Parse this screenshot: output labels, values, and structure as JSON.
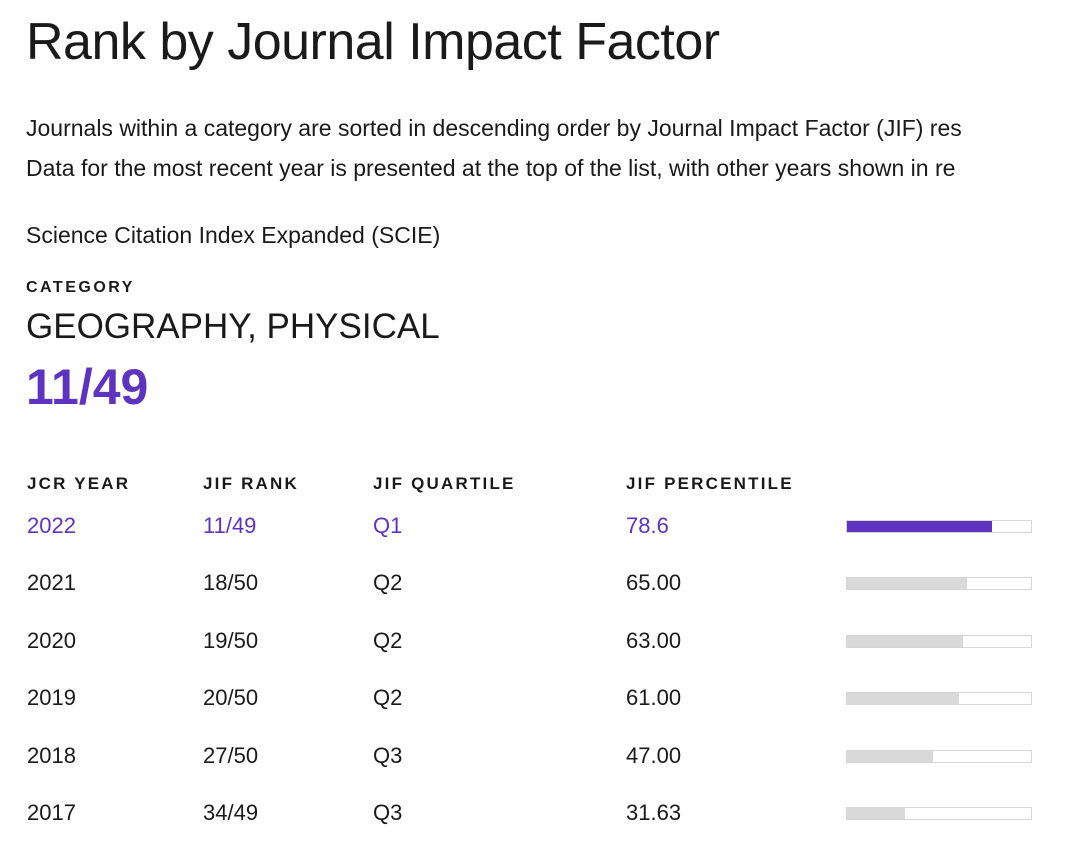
{
  "title": "Rank by Journal Impact Factor",
  "intro": {
    "line1": "Journals within a category are sorted in descending order by Journal Impact Factor (JIF) res",
    "line2": "Data for the most recent year is presented at the top of the list, with other years shown in re"
  },
  "index_name": "Science Citation Index Expanded (SCIE)",
  "category": {
    "label": "CATEGORY",
    "name": "GEOGRAPHY, PHYSICAL",
    "rank": "11/49"
  },
  "colors": {
    "accent": "#5e33bf",
    "bar_empty": "#d9d9d9",
    "bar_border": "#d6d6d6",
    "text": "#1a1a1a"
  },
  "table": {
    "headers": {
      "year": "JCR YEAR",
      "rank": "JIF RANK",
      "quartile": "JIF QUARTILE",
      "percentile": "JIF PERCENTILE"
    },
    "rows": [
      {
        "year": "2022",
        "rank": "11/49",
        "quartile": "Q1",
        "percentile": "78.6"
      },
      {
        "year": "2021",
        "rank": "18/50",
        "quartile": "Q2",
        "percentile": "65.00"
      },
      {
        "year": "2020",
        "rank": "19/50",
        "quartile": "Q2",
        "percentile": "63.00"
      },
      {
        "year": "2019",
        "rank": "20/50",
        "quartile": "Q2",
        "percentile": "61.00"
      },
      {
        "year": "2018",
        "rank": "27/50",
        "quartile": "Q3",
        "percentile": "47.00"
      },
      {
        "year": "2017",
        "rank": "34/49",
        "quartile": "Q3",
        "percentile": "31.63"
      }
    ]
  }
}
